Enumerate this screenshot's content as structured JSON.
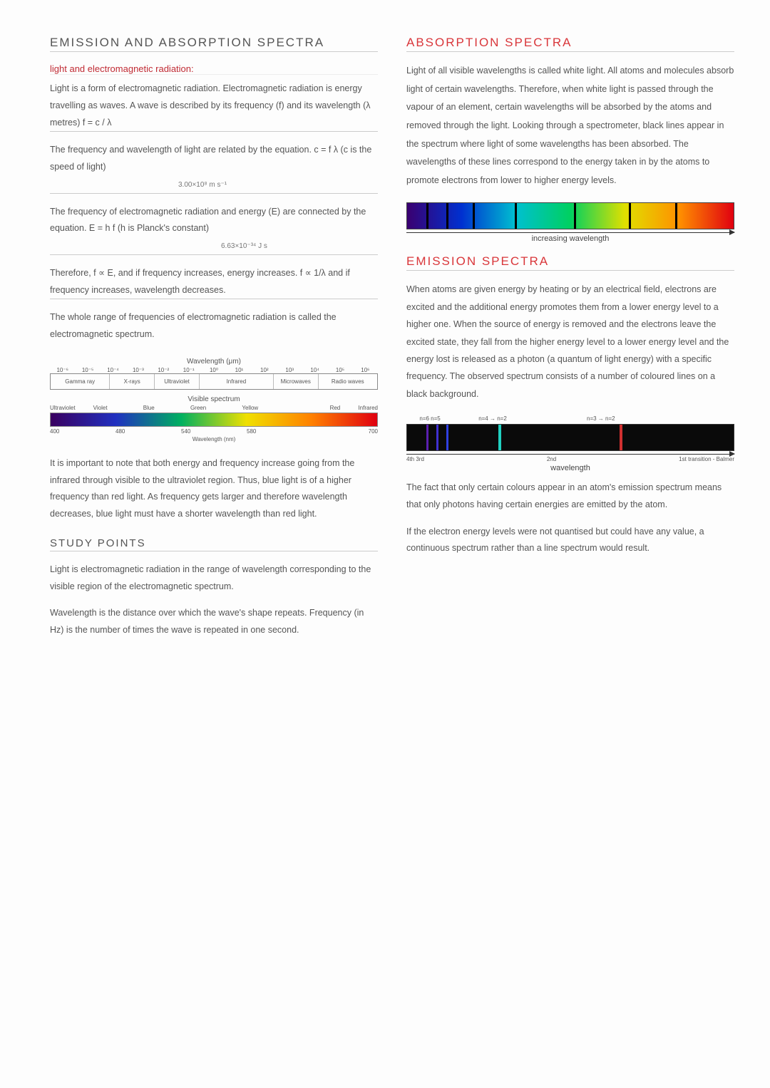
{
  "left": {
    "heading": "EMISSION and ABSORPTION  SPECTRA",
    "sub1": "light and electromagnetic radiation:",
    "p1": "Light is a form of electromagnetic radiation. Electromagnetic radiation is energy travelling as waves. A wave is described by its frequency (f) and its wavelength (λ metres)   f = c / λ",
    "p2": "The frequency and wavelength of light are related by the equation.   c = f λ   (c is the speed of light)",
    "p2_annot": "3.00×10⁸ m s⁻¹",
    "p3": "The frequency of electromagnetic radiation and energy (E) are connected by the equation.   E = h f   (h is Planck's constant)",
    "p3_annot": "6.63×10⁻³⁴ J s",
    "p4": "Therefore, f ∝ E, and if frequency increases, energy increases. f ∝ 1/λ and if frequency increases, wavelength decreases.",
    "p5": "The whole range of frequencies of electromagnetic radiation is called the electromagnetic spectrum.",
    "em_title": "Wavelength (μm)",
    "em_ticks": [
      "10⁻⁶",
      "10⁻⁵",
      "10⁻⁴",
      "10⁻³",
      "10⁻²",
      "10⁻¹",
      "10⁰",
      "10¹",
      "10²",
      "10³",
      "10⁴",
      "10⁵",
      "10⁶"
    ],
    "em_bands": [
      {
        "label": "Gamma ray",
        "flex": 2
      },
      {
        "label": "X-rays",
        "flex": 1.5
      },
      {
        "label": "Ultraviolet",
        "flex": 1.5
      },
      {
        "label": "Infrared",
        "flex": 2.5
      },
      {
        "label": "Microwaves",
        "flex": 1.5
      },
      {
        "label": "Radio waves",
        "flex": 2
      }
    ],
    "vis_title": "Visible spectrum",
    "vis_left": "Ultraviolet",
    "vis_right": "Infrared",
    "vis_colors": [
      "Violet",
      "Blue",
      "Green",
      "Yellow",
      "",
      "Red"
    ],
    "vis_nums": [
      "400",
      "480",
      "540",
      "580",
      "",
      "700"
    ],
    "vis_caption": "Wavelength (nm)",
    "p6": "It is important to note that both energy and frequency increase going from the infrared through visible to the ultraviolet region. Thus, blue light is of a higher frequency than red light. As frequency gets larger and therefore wavelength decreases, blue light must have a shorter wavelength than red light.",
    "study_heading": "STUDY POINTS",
    "study1": "Light is electromagnetic radiation in the range of wavelength corresponding to the visible region of the electromagnetic spectrum.",
    "study2": "Wavelength is the distance over which the wave's shape repeats. Frequency (in Hz) is the number of times the wave is repeated in one second."
  },
  "right": {
    "abs_heading": "ABSORPTION  SPECTRA",
    "abs_para": "Light of all visible wavelengths is called white light. All atoms and molecules absorb light of certain wavelengths. Therefore, when white light is passed through the vapour of an element, certain wavelengths will be absorbed by the atoms and removed through the light. Looking through a spectrometer, black lines appear in the spectrum where light of some wavelengths has been absorbed. The wavelengths of these lines correspond to the energy taken in by the atoms to promote electrons from lower to higher energy levels.",
    "abs_lines_pct": [
      6,
      12,
      20,
      33,
      51,
      68,
      82
    ],
    "abs_axis": "increasing wavelength",
    "emis_heading": "EMISSION  SPECTRA",
    "emis_para": "When atoms are given energy by heating or by an electrical field, electrons are excited and the additional energy promotes them from a lower energy level to a higher one. When the source of energy is removed and the electrons leave the excited state, they fall from the higher energy level to a lower energy level and the energy lost is released as a photon (a quantum of light energy) with a specific frequency. The observed spectrum consists of a number of coloured lines on a black background.",
    "emis_top": [
      "n=6 n=5",
      "n=4 → n=2",
      "n=3 → n=2"
    ],
    "emis_lines": [
      {
        "pos": 6,
        "w": 3,
        "c": "#5a20b0"
      },
      {
        "pos": 9,
        "w": 3,
        "c": "#4030d0"
      },
      {
        "pos": 12,
        "w": 3,
        "c": "#3040e0"
      },
      {
        "pos": 28,
        "w": 4,
        "c": "#20d0c0"
      },
      {
        "pos": 65,
        "w": 4,
        "c": "#d03030"
      }
    ],
    "emis_bottom": [
      "4th 3rd",
      "2nd",
      "1st transition - Balmer"
    ],
    "emis_axis": "wavelength",
    "p_after1": "The fact that only certain colours appear in an atom's emission spectrum means that only photons having certain energies are emitted by the atom.",
    "p_after2": "If the electron energy levels were not quantised but could have any value, a continuous spectrum rather than a line spectrum would result."
  }
}
